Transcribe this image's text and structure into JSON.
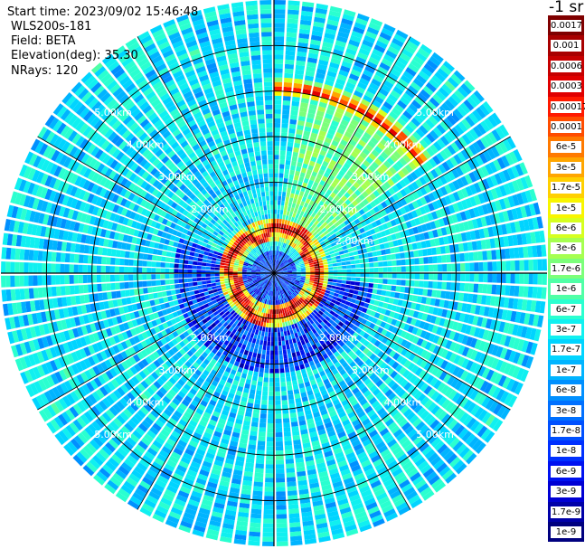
{
  "header": {
    "start_time": "Start time: 2023/09/02 15:46:48",
    "instrument": "WLS200s-181",
    "field": "Field: BETA",
    "elevation": "Elevation(deg): 35.30",
    "nrays": "NRays: 120"
  },
  "colorbar": {
    "unit_label": "-1 sr",
    "levels": [
      {
        "label": "0.0017",
        "color": "#7f0000"
      },
      {
        "label": "0.001",
        "color": "#a80000"
      },
      {
        "label": "0.0006",
        "color": "#c60000"
      },
      {
        "label": "0.0003",
        "color": "#e00000"
      },
      {
        "label": "0.00017",
        "color": "#ff1a00"
      },
      {
        "label": "0.0001",
        "color": "#ff4d00"
      },
      {
        "label": "6e-5",
        "color": "#ff7a00"
      },
      {
        "label": "3e-5",
        "color": "#ffa600"
      },
      {
        "label": "1.7e-5",
        "color": "#ffd000"
      },
      {
        "label": "1e-5",
        "color": "#f8f500"
      },
      {
        "label": "6e-6",
        "color": "#d6ff1f"
      },
      {
        "label": "3e-6",
        "color": "#a6ff50"
      },
      {
        "label": "1.7e-6",
        "color": "#7cff7a"
      },
      {
        "label": "1e-6",
        "color": "#50ffa6"
      },
      {
        "label": "6e-7",
        "color": "#2affd0"
      },
      {
        "label": "3e-7",
        "color": "#10f0f0"
      },
      {
        "label": "1.7e-7",
        "color": "#00d4ff"
      },
      {
        "label": "1e-7",
        "color": "#00b4ff"
      },
      {
        "label": "6e-8",
        "color": "#0090ff"
      },
      {
        "label": "3e-8",
        "color": "#0070ff"
      },
      {
        "label": "1.7e-8",
        "color": "#0050ff"
      },
      {
        "label": "1e-8",
        "color": "#0030ff"
      },
      {
        "label": "6e-9",
        "color": "#0012f0"
      },
      {
        "label": "3e-9",
        "color": "#0000d4"
      },
      {
        "label": "1.7e-9",
        "color": "#0000a8"
      },
      {
        "label": "1e-9",
        "color": "#00007f"
      }
    ]
  },
  "chart_data": {
    "type": "heatmap",
    "projection": "polar (PPI scan)",
    "field": "BETA",
    "elevation_deg": 35.3,
    "nrays": 120,
    "range_rings_km": [
      1,
      2,
      3,
      4,
      5
    ],
    "ring_labels": [
      "2.00km",
      "3.00km",
      "4.00km",
      "5.00km"
    ],
    "azimuth_spokes_deg": [
      0,
      30,
      60,
      90,
      120,
      150,
      180,
      210,
      240,
      270,
      300,
      330
    ],
    "max_range_km": 6.0,
    "background_beta_sr": 1.7e-07,
    "features": [
      {
        "name": "near-field ring",
        "range_km": [
          0.7,
          1.2
        ],
        "azimuth_deg": [
          0,
          360
        ],
        "beta_peak_sr": 0.001
      },
      {
        "name": "NE arc",
        "range_km": [
          3.9,
          4.25
        ],
        "azimuth_deg": [
          0,
          55
        ],
        "beta_peak_sr": 0.0003
      },
      {
        "name": "NE sector plume",
        "range_km": [
          1.0,
          3.9
        ],
        "azimuth_deg": [
          10,
          55
        ],
        "beta_peak_sr": 1e-06
      },
      {
        "name": "low-signal SE/S/W sector",
        "range_km": [
          0.5,
          2.2
        ],
        "azimuth_deg": [
          95,
          290
        ],
        "beta_peak_sr": 3e-09
      }
    ]
  }
}
